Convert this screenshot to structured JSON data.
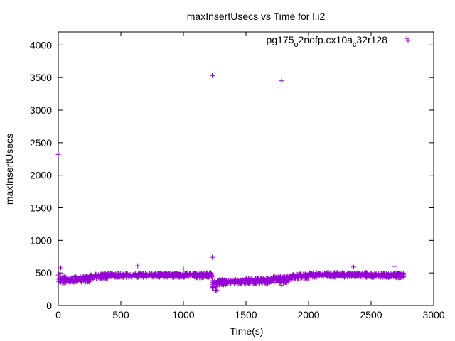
{
  "chart_data": {
    "type": "scatter",
    "title": "maxInsertUsecs vs Time for l.i2",
    "xlabel": "Time(s)",
    "ylabel": "maxInsertUsecs",
    "xlim": [
      0,
      3000
    ],
    "ylim": [
      0,
      4200
    ],
    "xticks": [
      0,
      500,
      1000,
      1500,
      2000,
      2500,
      3000
    ],
    "yticks": [
      0,
      500,
      1000,
      1500,
      2000,
      2500,
      3000,
      3500,
      4000
    ],
    "grid": false,
    "legend_position": "top-right",
    "colors": {
      "series": "#9400d3",
      "axes": "#000000"
    },
    "marker": "plus",
    "series": [
      {
        "name": "pg175_o2nofp.cx10a_c32r128",
        "outliers": [
          [
            0,
            2320
          ],
          [
            5,
            480
          ],
          [
            20,
            580
          ],
          [
            635,
            610
          ],
          [
            1000,
            560
          ],
          [
            1230,
            3530
          ],
          [
            1230,
            740
          ],
          [
            1785,
            3450
          ],
          [
            1785,
            310
          ],
          [
            2360,
            590
          ],
          [
            2690,
            600
          ],
          [
            2785,
            4100
          ]
        ],
        "bands": [
          {
            "x": [
              0,
              50
            ],
            "y": [
              300,
              500
            ]
          },
          {
            "x": [
              50,
              120
            ],
            "y": [
              330,
              450
            ]
          },
          {
            "x": [
              120,
              250
            ],
            "y": [
              340,
              470
            ]
          },
          {
            "x": [
              250,
              400
            ],
            "y": [
              400,
              500
            ]
          },
          {
            "x": [
              400,
              1000
            ],
            "y": [
              420,
              510
            ]
          },
          {
            "x": [
              1000,
              1230
            ],
            "y": [
              410,
              520
            ]
          },
          {
            "x": [
              1230,
              1270
            ],
            "y": [
              200,
              420
            ]
          },
          {
            "x": [
              1270,
              1500
            ],
            "y": [
              300,
              420
            ]
          },
          {
            "x": [
              1500,
              1700
            ],
            "y": [
              310,
              440
            ]
          },
          {
            "x": [
              1700,
              1850
            ],
            "y": [
              330,
              470
            ]
          },
          {
            "x": [
              1850,
              2000
            ],
            "y": [
              400,
              500
            ]
          },
          {
            "x": [
              2000,
              2500
            ],
            "y": [
              420,
              520
            ]
          },
          {
            "x": [
              2500,
              2700
            ],
            "y": [
              420,
              510
            ]
          },
          {
            "x": [
              2700,
              2760
            ],
            "y": [
              410,
              520
            ]
          }
        ]
      }
    ]
  }
}
